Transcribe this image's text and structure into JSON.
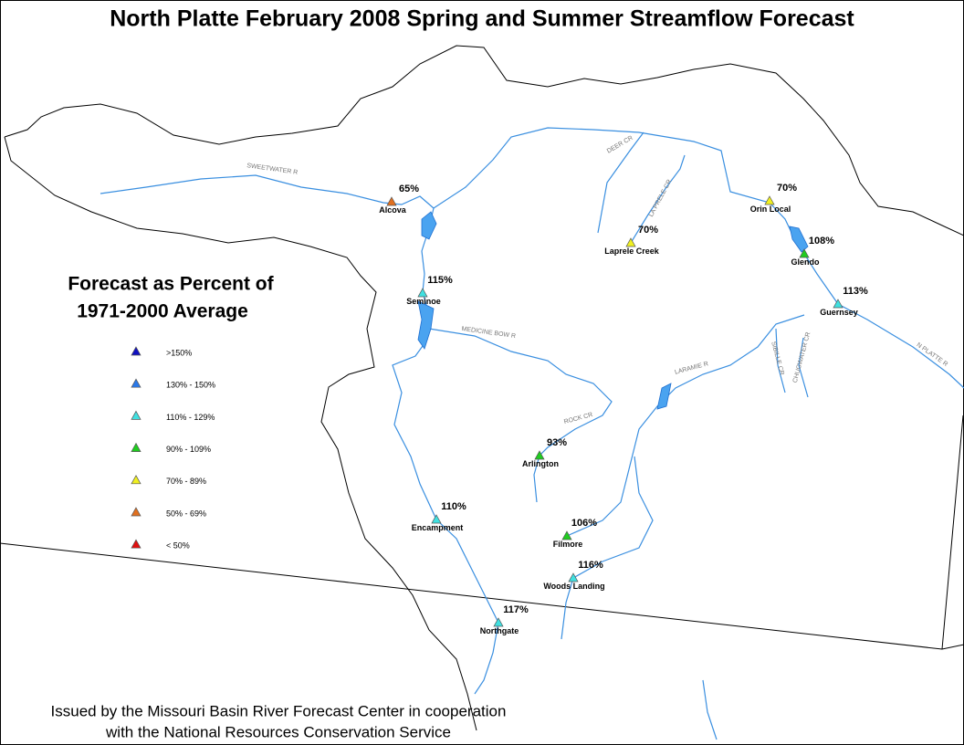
{
  "title": "North Platte February 2008 Spring and Summer Streamflow Forecast",
  "legend": {
    "title_lines": [
      "Forecast as Percent of",
      "1971-2000 Average"
    ],
    "entries": [
      {
        "label": ">150%",
        "color": "#1010c0"
      },
      {
        "label": "130% - 150%",
        "color": "#2a78e8"
      },
      {
        "label": "110% - 129%",
        "color": "#40e0e0"
      },
      {
        "label": "90% - 109%",
        "color": "#20cc20"
      },
      {
        "label": "70% - 89%",
        "color": "#f0f020"
      },
      {
        "label": "50% - 69%",
        "color": "#e07020"
      },
      {
        "label": "< 50%",
        "color": "#e01010"
      }
    ]
  },
  "stations": [
    {
      "name": "Alcova",
      "percent": "65%",
      "color": "#e07020"
    },
    {
      "name": "Seminoe",
      "percent": "115%",
      "color": "#40e0e0"
    },
    {
      "name": "Orin Local",
      "percent": "70%",
      "color": "#f0f020"
    },
    {
      "name": "Laprele Creek",
      "percent": "70%",
      "color": "#f0f020"
    },
    {
      "name": "Glendo",
      "percent": "108%",
      "color": "#20cc20"
    },
    {
      "name": "Guernsey",
      "percent": "113%",
      "color": "#40e0e0"
    },
    {
      "name": "Arlington",
      "percent": "93%",
      "color": "#20cc20"
    },
    {
      "name": "Encampment",
      "percent": "110%",
      "color": "#40e0e0"
    },
    {
      "name": "Filmore",
      "percent": "106%",
      "color": "#20cc20"
    },
    {
      "name": "Woods Landing",
      "percent": "116%",
      "color": "#40e0e0"
    },
    {
      "name": "Northgate",
      "percent": "117%",
      "color": "#40e0e0"
    }
  ],
  "river_labels": [
    "SWEETWATER R",
    "DEER CR",
    "LA PRELE CR",
    "MEDICINE BOW R",
    "ROCK CR",
    "LARAMIE R",
    "SIBILLE CR",
    "CHUGWATER CR",
    "N PLATTE R"
  ],
  "footer": [
    "Issued by the Missouri Basin River Forecast Center in cooperation",
    "with the National Resources Conservation Service"
  ]
}
